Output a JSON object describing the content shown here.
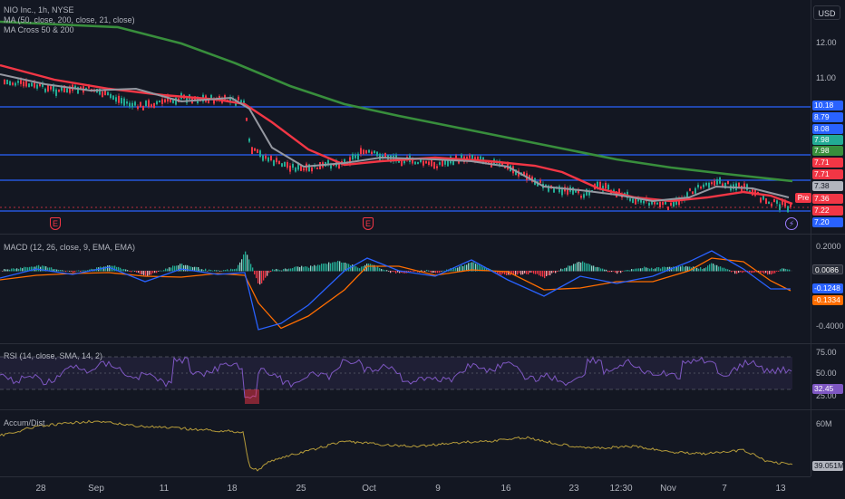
{
  "legend": {
    "symbol": "NIO Inc., 1h, NYSE",
    "ma": "MA (50, close, 200, close, 21, close)",
    "cross": "MA Cross 50 & 200"
  },
  "currency_button": "USD",
  "price_axis": {
    "ticks": [
      "12.00",
      "11.00"
    ],
    "tags": [
      {
        "label": "10.18",
        "color": "#2962ff"
      },
      {
        "label": "8.79",
        "color": "#2962ff"
      },
      {
        "label": "8.08",
        "color": "#2962ff"
      },
      {
        "label": "7.98",
        "color": "#22ab94"
      },
      {
        "label": "7.98",
        "color": "#388e3c"
      },
      {
        "label": "7.71",
        "color": "#f23645"
      },
      {
        "label": "7.71",
        "color": "#f23645"
      },
      {
        "label": "7.38",
        "color": "#b2b5be"
      },
      {
        "label": "7.36",
        "color": "#f23645"
      },
      {
        "label": "7.22",
        "color": "#f23645"
      },
      {
        "label": "7.20",
        "color": "#2962ff"
      }
    ],
    "pre_badge": "Pre"
  },
  "earnings_marker": "E",
  "dividend_marker": "⚡",
  "macd": {
    "legend": "MACD (12, 26, close, 9, EMA, EMA)",
    "ticks": [
      "0.2000",
      "-0.4000"
    ],
    "tags": [
      {
        "label": "0.0086",
        "color": "#363a45"
      },
      {
        "label": "-0.1248",
        "color": "#2962ff"
      },
      {
        "label": "-0.1334",
        "color": "#ff6d00"
      }
    ]
  },
  "rsi": {
    "legend": "RSI (14, close, SMA, 14, 2)",
    "ticks": [
      "75.00",
      "50.00",
      "25.00"
    ],
    "tags": [
      {
        "label": "32.45",
        "color": "#7e57c2"
      }
    ]
  },
  "accum": {
    "legend": "Accum/Dist",
    "ticks": [
      "60M"
    ],
    "tags": [
      {
        "label": "39.051M",
        "color": "#b2b5be"
      }
    ]
  },
  "time_axis": [
    "28",
    "Sep",
    "11",
    "18",
    "25",
    "Oct",
    "9",
    "16",
    "23",
    "12:30",
    "Nov",
    "7",
    "13"
  ],
  "colors": {
    "up": "#22ab94",
    "down": "#f23645",
    "ma50": "#f23645",
    "ma200": "#388e3c",
    "ma21": "#9598a1",
    "hline": "#2962ff",
    "macd": "#2962ff",
    "signal": "#ff6d00",
    "rsi": "#7e57c2",
    "ad": "#b59b3a"
  }
}
